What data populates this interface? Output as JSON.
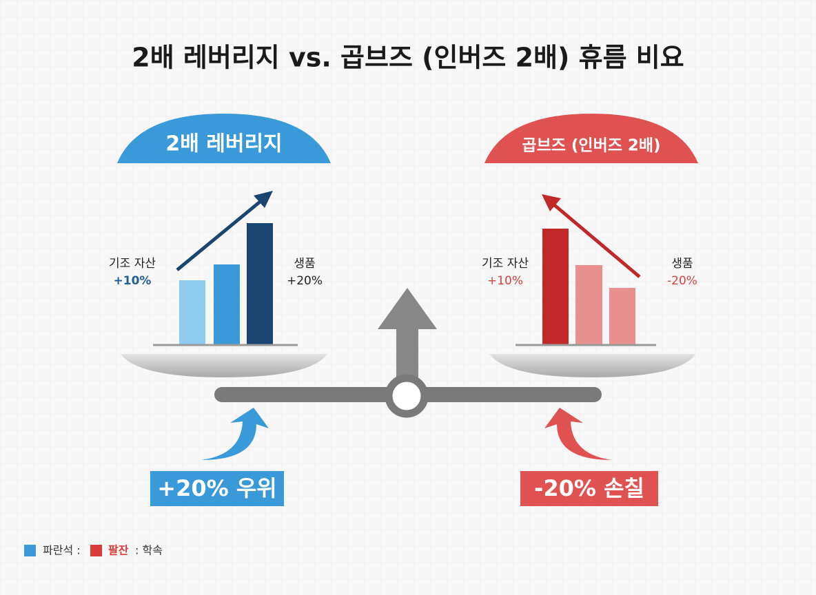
{
  "title": "2배 레버리지 vs. 곱브즈 (인버즈 2배) 휴름 비요",
  "left": {
    "header": "2배 레버리지",
    "base_label": "기조 자산",
    "base_value": "+10%",
    "product_label": "생품",
    "product_value": "+20%",
    "result": "+20% 우위"
  },
  "right": {
    "header": "곱브즈 (인버즈 2배)",
    "base_label": "기조 자산",
    "base_value": "+10%",
    "product_label": "생품",
    "product_value": "-20%",
    "result": "-20% 손칠"
  },
  "legend": {
    "blue": "파란석 :",
    "red": "팔잔",
    "red_suffix": ": 학속"
  }
}
